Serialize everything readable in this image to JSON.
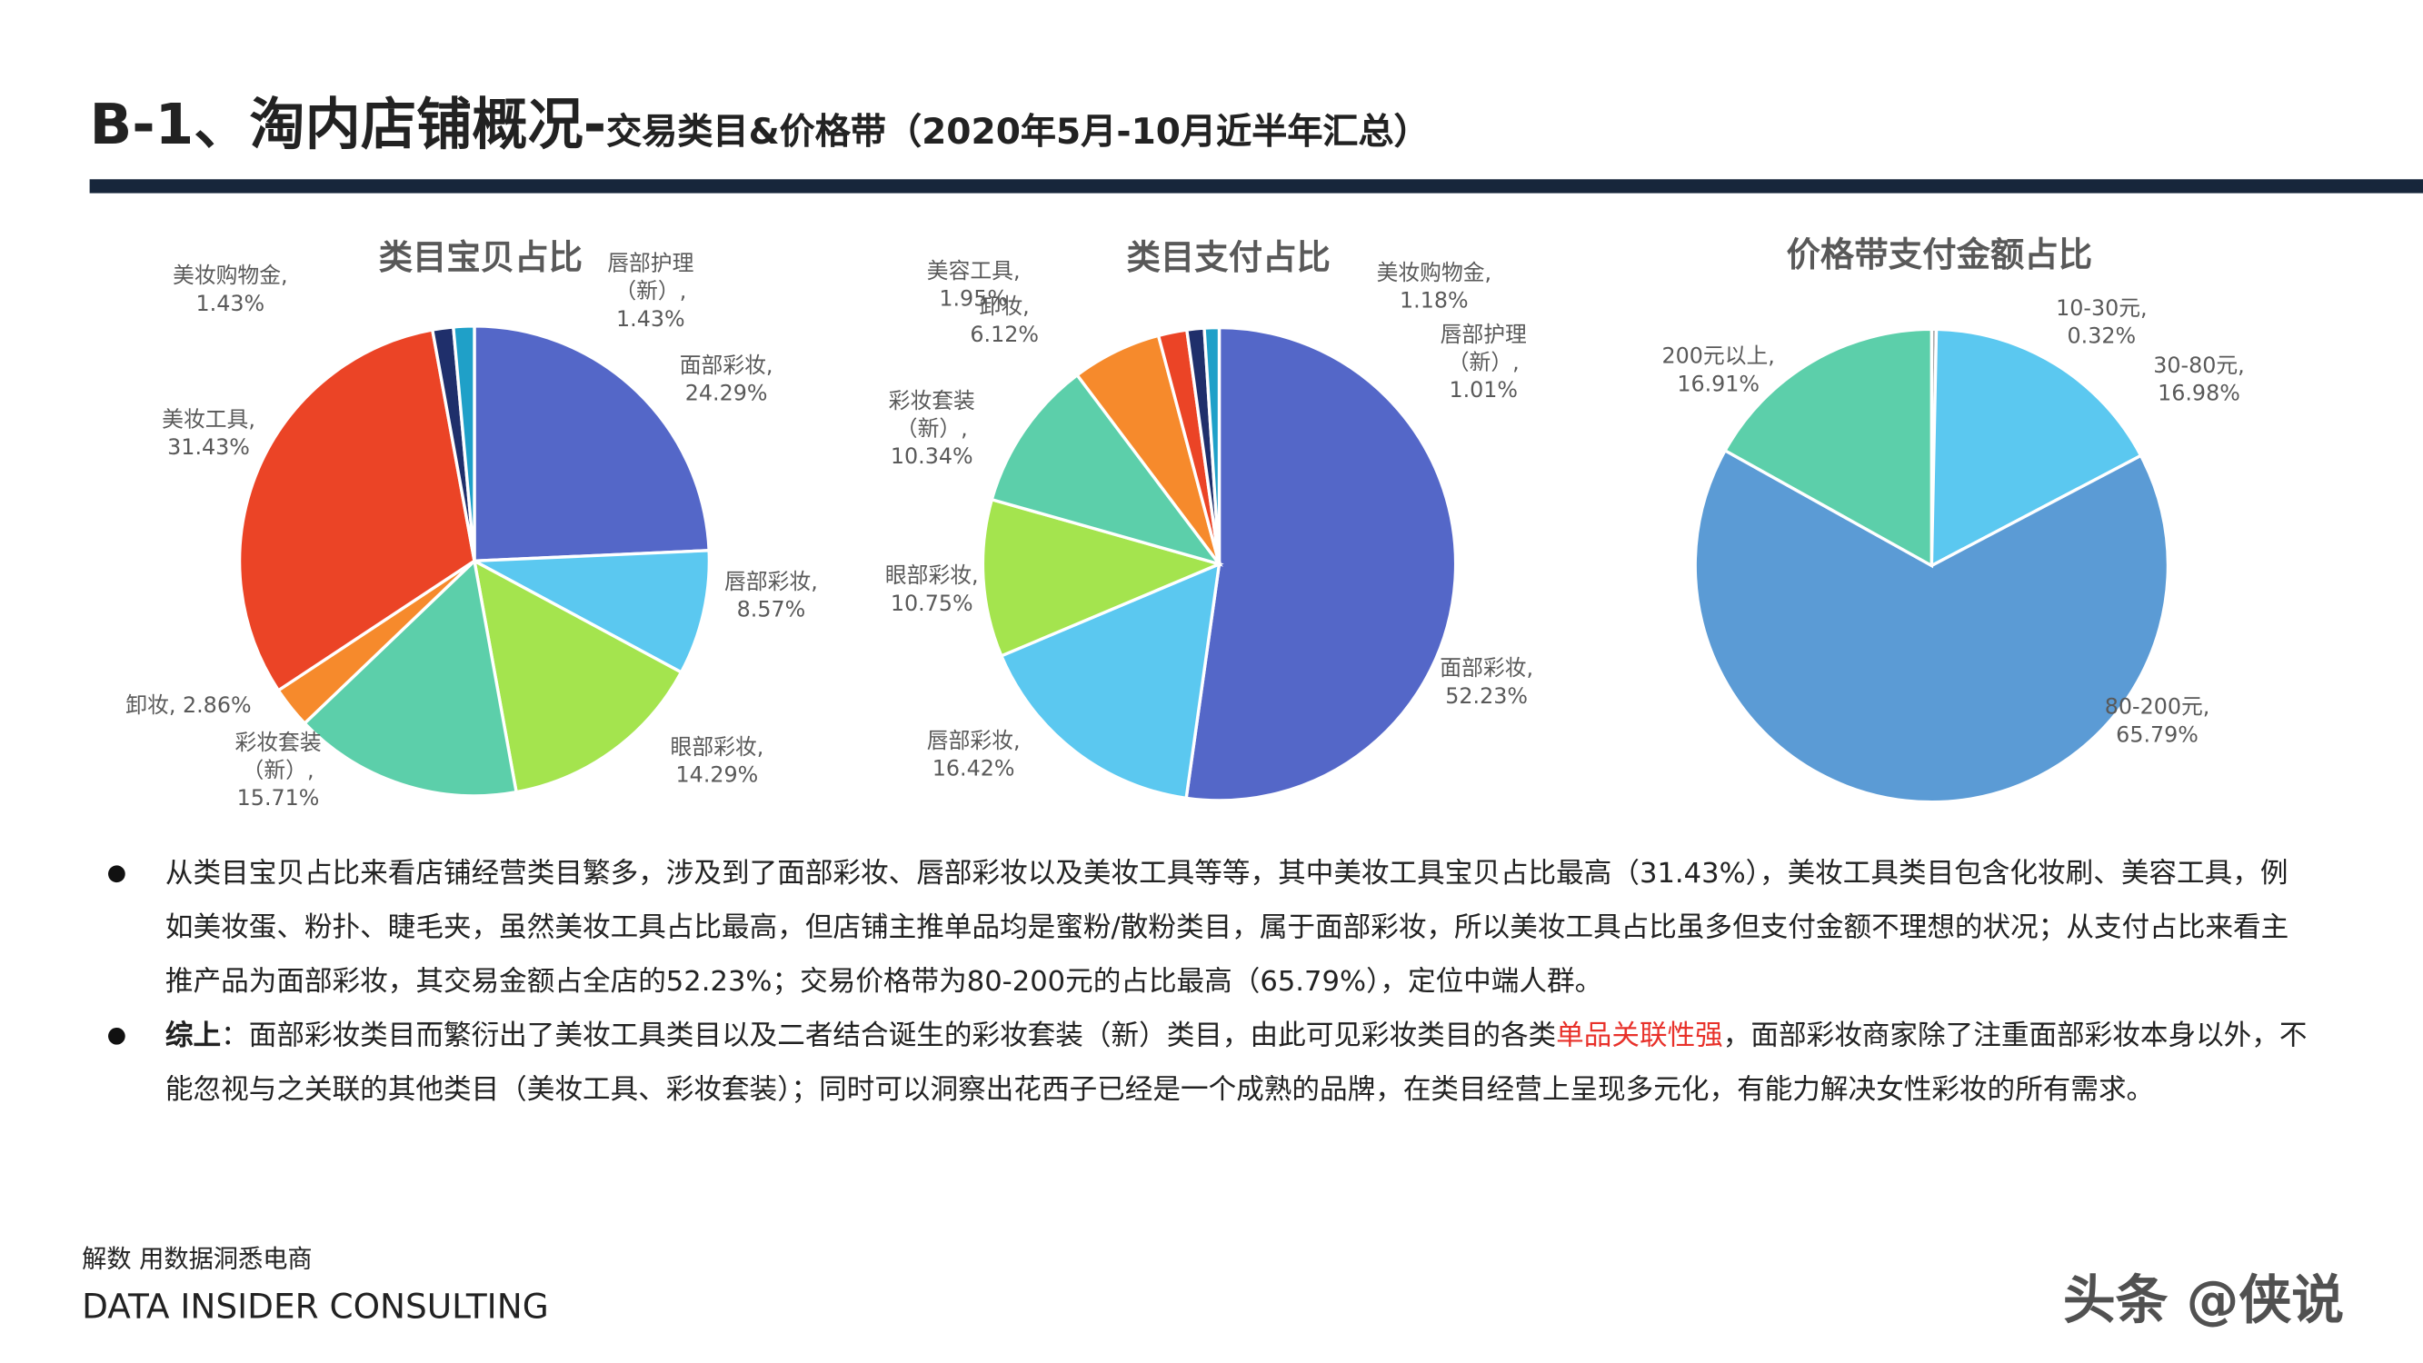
{
  "header": {
    "title": "B-1、淘内店铺概况-",
    "subtitle": "交易类目&价格带（2020年5月-10月近半年汇总）"
  },
  "chart_data": [
    {
      "type": "pie",
      "title": "类目宝贝占比",
      "values": [
        24.29,
        8.57,
        14.29,
        15.71,
        2.86,
        31.43,
        1.43,
        1.43
      ],
      "value_labels": [
        "面部彩妆,\n24.29%",
        "唇部彩妆,\n8.57%",
        "眼部彩妆,\n14.29%",
        "彩妆套装\n（新）,\n15.71%",
        "卸妆, 2.86%",
        "美妆工具,\n31.43%",
        "美妆购物金,\n1.43%",
        "唇部护理\n（新）,\n1.43%"
      ],
      "colors": [
        "#5467c8",
        "#5bc8f0",
        "#a4e44e",
        "#5ccfaa",
        "#f68a2c",
        "#eb4426",
        "#1f2f6b",
        "#1fa0c8"
      ]
    },
    {
      "type": "pie",
      "title": "类目支付占比",
      "values": [
        52.23,
        16.42,
        10.75,
        10.34,
        6.12,
        1.95,
        1.18,
        1.01
      ],
      "value_labels": [
        "面部彩妆,\n52.23%",
        "唇部彩妆,\n16.42%",
        "眼部彩妆,\n10.75%",
        "彩妆套装\n（新）,\n10.34%",
        "卸妆,\n6.12%",
        "美容工具,\n1.95%",
        "美妆购物金,\n1.18%",
        "唇部护理\n（新）,\n1.01%"
      ],
      "colors": [
        "#5467c8",
        "#5bc8f0",
        "#a4e44e",
        "#5ccfaa",
        "#f68a2c",
        "#eb4426",
        "#1f2f6b",
        "#1fa0c8"
      ]
    },
    {
      "type": "pie",
      "title": "价格带支付金额占比",
      "values": [
        0.32,
        16.98,
        65.79,
        16.91
      ],
      "value_labels": [
        "10-30元,\n0.32%",
        "30-80元,\n16.98%",
        "80-200元,\n65.79%",
        "200元以上,\n16.91%"
      ],
      "colors": [
        "#a6a6a6",
        "#5bc8f0",
        "#5b9bd5",
        "#5ccfaa"
      ]
    }
  ],
  "bullets": [
    {
      "parts": [
        {
          "text": "从类目宝贝占比来看店铺经营类目繁多，涉及到了面部彩妆、唇部彩妆以及美妆工具等等，其中美妆工具宝贝占比最高（31.43%），美妆工具类目包含化妆刷、美容工具，例如美妆蛋、粉扑、睫毛夹，虽然美妆工具占比最高，但店铺主推单品均是蜜粉/散粉类目，属于面部彩妆，所以美妆工具占比虽多但支付金额不理想的状况；从支付占比来看主推产品为面部彩妆，其交易金额占全店的52.23%；交易价格带为80-200元的占比最高（65.79%），定位中端人群。"
        }
      ]
    },
    {
      "parts": [
        {
          "text": "综上",
          "bold": true
        },
        {
          "text": "：面部彩妆类目而繁衍出了美妆工具类目以及二者结合诞生的彩妆套装（新）类目，由此可见彩妆类目的各类"
        },
        {
          "text": "单品关联性强",
          "color": "#e8312a"
        },
        {
          "text": "，面部彩妆商家除了注重面部彩妆本身以外，不能忽视与之关联的其他类目（美妆工具、彩妆套装）；同时可以洞察出花西子已经是一个成熟的品牌，在类目经营上呈现多元化，有能力解决女性彩妆的所有需求。"
        }
      ]
    }
  ],
  "footer": {
    "tagline": "解数 用数据洞悉电商",
    "company": "DATA INSIDER CONSULTING"
  },
  "watermark": "头条 @侠说"
}
